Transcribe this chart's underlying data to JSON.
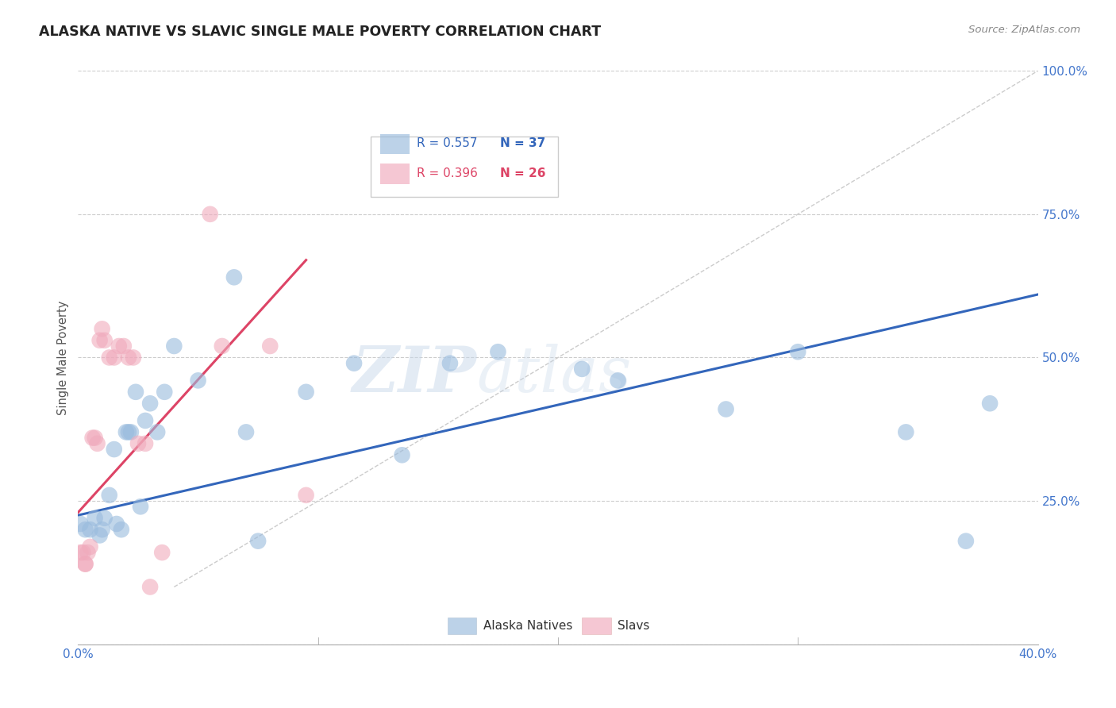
{
  "title": "ALASKA NATIVE VS SLAVIC SINGLE MALE POVERTY CORRELATION CHART",
  "source": "Source: ZipAtlas.com",
  "ylabel": "Single Male Poverty",
  "watermark": "ZIPatlas",
  "background_color": "#ffffff",
  "grid_color": "#cccccc",
  "blue_color": "#99bbdd",
  "pink_color": "#f0aabc",
  "blue_line_color": "#3366bb",
  "pink_line_color": "#dd4466",
  "diag_line_color": "#cccccc",
  "axis_label_color": "#4477cc",
  "legend_r_blue": "R = 0.557",
  "legend_n_blue": "N = 37",
  "legend_r_pink": "R = 0.396",
  "legend_n_pink": "N = 26",
  "alaska_natives_label": "Alaska Natives",
  "slavs_label": "Slavs",
  "alaska_x": [
    0.001,
    0.003,
    0.005,
    0.007,
    0.009,
    0.01,
    0.011,
    0.013,
    0.015,
    0.016,
    0.018,
    0.02,
    0.021,
    0.022,
    0.024,
    0.026,
    0.028,
    0.03,
    0.033,
    0.036,
    0.04,
    0.05,
    0.065,
    0.07,
    0.075,
    0.095,
    0.115,
    0.135,
    0.155,
    0.175,
    0.21,
    0.225,
    0.27,
    0.3,
    0.345,
    0.37,
    0.38
  ],
  "alaska_y": [
    0.21,
    0.2,
    0.2,
    0.22,
    0.19,
    0.2,
    0.22,
    0.26,
    0.34,
    0.21,
    0.2,
    0.37,
    0.37,
    0.37,
    0.44,
    0.24,
    0.39,
    0.42,
    0.37,
    0.44,
    0.52,
    0.46,
    0.64,
    0.37,
    0.18,
    0.44,
    0.49,
    0.33,
    0.49,
    0.51,
    0.48,
    0.46,
    0.41,
    0.51,
    0.37,
    0.18,
    0.42
  ],
  "slavs_x": [
    0.001,
    0.002,
    0.003,
    0.003,
    0.004,
    0.005,
    0.006,
    0.007,
    0.008,
    0.009,
    0.01,
    0.011,
    0.013,
    0.015,
    0.017,
    0.019,
    0.021,
    0.023,
    0.025,
    0.028,
    0.03,
    0.035,
    0.055,
    0.06,
    0.08,
    0.095
  ],
  "slavs_y": [
    0.16,
    0.16,
    0.14,
    0.14,
    0.16,
    0.17,
    0.36,
    0.36,
    0.35,
    0.53,
    0.55,
    0.53,
    0.5,
    0.5,
    0.52,
    0.52,
    0.5,
    0.5,
    0.35,
    0.35,
    0.1,
    0.16,
    0.75,
    0.52,
    0.52,
    0.26
  ],
  "xlim": [
    0.0,
    0.4
  ],
  "ylim": [
    0.0,
    1.0
  ],
  "blue_line_x": [
    0.0,
    0.4
  ],
  "blue_line_y": [
    0.225,
    0.61
  ],
  "pink_line_x": [
    0.0,
    0.095
  ],
  "pink_line_y": [
    0.23,
    0.67
  ],
  "diag_line_x": [
    0.04,
    0.4
  ],
  "diag_line_y": [
    0.1,
    1.0
  ]
}
